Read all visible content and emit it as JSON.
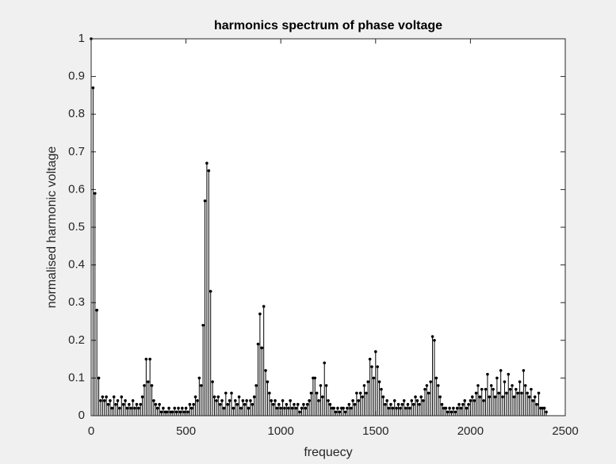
{
  "chart_data": {
    "type": "stem",
    "title": "harmonics spectrum of phase voltage",
    "xlabel": "frequecy",
    "ylabel": "normalised harmonic voltage",
    "color": "#000000",
    "xlim": [
      0,
      2500
    ],
    "xticks": [
      0,
      500,
      1000,
      1500,
      2000,
      2500
    ],
    "ylim": [
      0,
      1
    ],
    "yticks": [
      0,
      0.1,
      0.2,
      0.3,
      0.4,
      0.5,
      0.6,
      0.7,
      0.8,
      0.9,
      1
    ],
    "x": [
      0,
      10,
      20,
      30,
      40,
      50,
      60,
      70,
      80,
      90,
      100,
      110,
      120,
      130,
      140,
      150,
      160,
      170,
      180,
      190,
      200,
      210,
      220,
      230,
      240,
      250,
      260,
      270,
      280,
      290,
      300,
      310,
      320,
      330,
      340,
      350,
      360,
      370,
      380,
      390,
      400,
      410,
      420,
      430,
      440,
      450,
      460,
      470,
      480,
      490,
      500,
      510,
      520,
      530,
      540,
      550,
      560,
      570,
      580,
      590,
      600,
      610,
      620,
      630,
      640,
      650,
      660,
      670,
      680,
      690,
      700,
      710,
      720,
      730,
      740,
      750,
      760,
      770,
      780,
      790,
      800,
      810,
      820,
      830,
      840,
      850,
      860,
      870,
      880,
      890,
      900,
      910,
      920,
      930,
      940,
      950,
      960,
      970,
      980,
      990,
      1000,
      1010,
      1020,
      1030,
      1040,
      1050,
      1060,
      1070,
      1080,
      1090,
      1100,
      1110,
      1120,
      1130,
      1140,
      1150,
      1160,
      1170,
      1180,
      1190,
      1200,
      1210,
      1220,
      1230,
      1240,
      1250,
      1260,
      1270,
      1280,
      1290,
      1300,
      1310,
      1320,
      1330,
      1340,
      1350,
      1360,
      1370,
      1380,
      1390,
      1400,
      1410,
      1420,
      1430,
      1440,
      1450,
      1460,
      1470,
      1480,
      1490,
      1500,
      1510,
      1520,
      1530,
      1540,
      1550,
      1560,
      1570,
      1580,
      1590,
      1600,
      1610,
      1620,
      1630,
      1640,
      1650,
      1660,
      1670,
      1680,
      1690,
      1700,
      1710,
      1720,
      1730,
      1740,
      1750,
      1760,
      1770,
      1780,
      1790,
      1800,
      1810,
      1820,
      1830,
      1840,
      1850,
      1860,
      1870,
      1880,
      1890,
      1900,
      1910,
      1920,
      1930,
      1940,
      1950,
      1960,
      1970,
      1980,
      1990,
      2000,
      2010,
      2020,
      2030,
      2040,
      2050,
      2060,
      2070,
      2080,
      2090,
      2100,
      2110,
      2120,
      2130,
      2140,
      2150,
      2160,
      2170,
      2180,
      2190,
      2200,
      2210,
      2220,
      2230,
      2240,
      2250,
      2260,
      2270,
      2280,
      2290,
      2300,
      2310,
      2320,
      2330,
      2340,
      2350,
      2360,
      2370,
      2380,
      2390,
      2400
    ],
    "values": [
      1,
      0.87,
      0.59,
      0.28,
      0.1,
      0.04,
      0.05,
      0.04,
      0.05,
      0.03,
      0.04,
      0.02,
      0.05,
      0.03,
      0.04,
      0.02,
      0.05,
      0.03,
      0.04,
      0.02,
      0.03,
      0.02,
      0.04,
      0.02,
      0.03,
      0.02,
      0.03,
      0.05,
      0.08,
      0.15,
      0.09,
      0.15,
      0.08,
      0.04,
      0.03,
      0.02,
      0.03,
      0.01,
      0.02,
      0.01,
      0.01,
      0.02,
      0.01,
      0.01,
      0.02,
      0.01,
      0.02,
      0.01,
      0.02,
      0.01,
      0.02,
      0.01,
      0.03,
      0.02,
      0.03,
      0.05,
      0.04,
      0.1,
      0.08,
      0.24,
      0.57,
      0.67,
      0.65,
      0.33,
      0.09,
      0.05,
      0.04,
      0.05,
      0.03,
      0.04,
      0.02,
      0.06,
      0.03,
      0.04,
      0.06,
      0.02,
      0.04,
      0.03,
      0.05,
      0.02,
      0.04,
      0.03,
      0.04,
      0.02,
      0.04,
      0.03,
      0.05,
      0.08,
      0.19,
      0.27,
      0.18,
      0.29,
      0.12,
      0.09,
      0.06,
      0.04,
      0.03,
      0.04,
      0.02,
      0.03,
      0.02,
      0.04,
      0.02,
      0.03,
      0.02,
      0.04,
      0.02,
      0.03,
      0.02,
      0.03,
      0.01,
      0.02,
      0.03,
      0.02,
      0.03,
      0.04,
      0.06,
      0.1,
      0.1,
      0.06,
      0.04,
      0.08,
      0.05,
      0.14,
      0.08,
      0.04,
      0.03,
      0.02,
      0.02,
      0.01,
      0.02,
      0.01,
      0.02,
      0.02,
      0.01,
      0.02,
      0.03,
      0.02,
      0.04,
      0.03,
      0.06,
      0.04,
      0.06,
      0.05,
      0.08,
      0.06,
      0.09,
      0.15,
      0.13,
      0.1,
      0.17,
      0.13,
      0.09,
      0.07,
      0.05,
      0.03,
      0.04,
      0.02,
      0.03,
      0.02,
      0.04,
      0.02,
      0.03,
      0.02,
      0.03,
      0.04,
      0.02,
      0.03,
      0.02,
      0.04,
      0.03,
      0.05,
      0.04,
      0.03,
      0.05,
      0.04,
      0.07,
      0.08,
      0.06,
      0.09,
      0.21,
      0.2,
      0.1,
      0.08,
      0.05,
      0.03,
      0.02,
      0.02,
      0.01,
      0.02,
      0.01,
      0.02,
      0.01,
      0.02,
      0.03,
      0.02,
      0.03,
      0.04,
      0.02,
      0.03,
      0.04,
      0.05,
      0.04,
      0.06,
      0.08,
      0.05,
      0.07,
      0.04,
      0.07,
      0.11,
      0.05,
      0.08,
      0.07,
      0.05,
      0.1,
      0.06,
      0.12,
      0.05,
      0.09,
      0.06,
      0.11,
      0.07,
      0.08,
      0.05,
      0.07,
      0.06,
      0.09,
      0.06,
      0.12,
      0.08,
      0.06,
      0.05,
      0.07,
      0.04,
      0.05,
      0.03,
      0.06,
      0.02,
      0.02,
      0.02,
      0.01
    ]
  }
}
